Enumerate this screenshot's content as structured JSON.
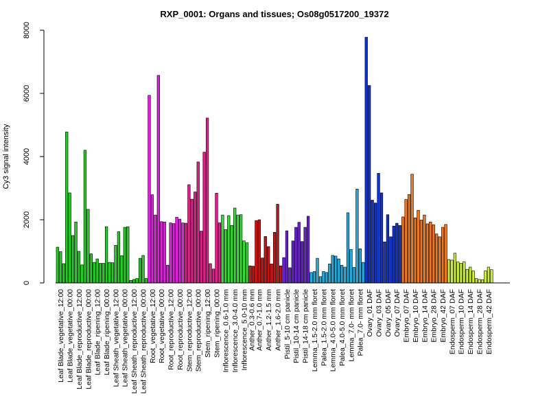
{
  "chart_data": {
    "type": "bar",
    "title": "RXP_0001: Organs and tissues; Os08g0517200_19372",
    "ylabel": "Cy3 signal intensity",
    "xlabel": "",
    "ylim": [
      0,
      8000
    ],
    "yticks": [
      0,
      2000,
      4000,
      6000,
      8000
    ],
    "grid": false,
    "groups": [
      {
        "label": "Leaf Blade_vegetative_12:00",
        "color": "#22cc22",
        "values": [
          1130,
          990,
          610
        ]
      },
      {
        "label": "Leaf Blade_vegetative_00:00",
        "color": "#22cc22",
        "values": [
          4780,
          2850,
          1500
        ]
      },
      {
        "label": "Leaf Blade_reproductive_12:00",
        "color": "#22cc22",
        "values": [
          1930,
          1000,
          570
        ]
      },
      {
        "label": "Leaf Blade_reproductive_00:00",
        "color": "#22cc22",
        "values": [
          4200,
          2330,
          920
        ]
      },
      {
        "label": "Leaf Blade_ripening_12:00",
        "color": "#22cc22",
        "values": [
          650,
          760,
          620
        ]
      },
      {
        "label": "Leaf Blade_ripening_00:00",
        "color": "#22cc22",
        "values": [
          620,
          1780,
          650
        ]
      },
      {
        "label": "Leaf Sheath_vegetative_12:00",
        "color": "#22cc22",
        "values": [
          640,
          1190,
          1620
        ]
      },
      {
        "label": "Leaf Sheath_vegetative_00:00",
        "color": "#22cc22",
        "values": [
          860,
          1760,
          1780
        ]
      },
      {
        "label": "Leaf Sheath_reproductive_12:00",
        "color": "#22cc22",
        "values": [
          80,
          110,
          140
        ]
      },
      {
        "label": "Leaf Sheath_reproductive_00:00",
        "color": "#22cc22",
        "values": [
          780,
          870,
          140
        ]
      },
      {
        "label": "Root_vegetative_12:00",
        "color": "#dd22dd",
        "values": [
          5940,
          2790,
          2150
        ]
      },
      {
        "label": "Root_vegetative_00:00",
        "color": "#dd22dd",
        "values": [
          6570,
          1940,
          1930
        ]
      },
      {
        "label": "Root_reproductive_12:00",
        "color": "#dd22dd",
        "values": [
          560,
          1900,
          1880
        ]
      },
      {
        "label": "Root_reproductive_00:00",
        "color": "#dd22dd",
        "values": [
          2080,
          2020,
          1900
        ]
      },
      {
        "label": "Stem_reproductive_12:00",
        "color": "#dd2288",
        "values": [
          1890,
          3110,
          2650
        ]
      },
      {
        "label": "Stem_reproductive_00:00",
        "color": "#dd2288",
        "values": [
          2880,
          3830,
          1640
        ]
      },
      {
        "label": "Stem_ripening_12:00",
        "color": "#dd2288",
        "values": [
          4140,
          5220,
          610
        ]
      },
      {
        "label": "Stem_ripening_00:00",
        "color": "#dd2288",
        "values": [
          440,
          2840,
          1900
        ]
      },
      {
        "label": "Inflorescence_0.6-1.0 mm",
        "color": "#33dd33",
        "values": [
          2150,
          1690,
          2130
        ]
      },
      {
        "label": "Inflorescence_3.0-4.0 mm",
        "color": "#33dd33",
        "values": [
          1820,
          2370,
          2150
        ]
      },
      {
        "label": "Inflorescence_5.0-10 mm",
        "color": "#33dd33",
        "values": [
          2160,
          1330,
          1270
        ]
      },
      {
        "label": "Anther_0.3-0.6 mm",
        "color": "#cc1111",
        "values": [
          540,
          530
        ]
      },
      {
        "label": "Anther_0.7-1.0 mm",
        "color": "#cc1111",
        "values": [
          1970,
          2000,
          790
        ]
      },
      {
        "label": "Anther_1.2-1.5 mm",
        "color": "#cc1111",
        "values": [
          1470,
          1150,
          600
        ]
      },
      {
        "label": "Anther_1.6-2.0 mm",
        "color": "#cc1111",
        "values": [
          1600,
          2490,
          540
        ]
      },
      {
        "label": "Pistil_5-10 cm panicle",
        "color": "#6622cc",
        "values": [
          800,
          1650,
          480
        ]
      },
      {
        "label": "Pistil_10-14 cm panicle",
        "color": "#6622cc",
        "values": [
          1330,
          1760,
          1920
        ]
      },
      {
        "label": "Pistil_14-18 cm panicle",
        "color": "#6622cc",
        "values": [
          1310,
          1760,
          2110
        ]
      },
      {
        "label": "Lemma_1.5-2.0 mm floret",
        "color": "#22aadd",
        "values": [
          330,
          360,
          780
        ]
      },
      {
        "label": "Palea_1.5-2.0 mm floret",
        "color": "#22aadd",
        "values": [
          200,
          360,
          330
        ]
      },
      {
        "label": "Lemma_4.0-5.0 mm floret",
        "color": "#22aadd",
        "values": [
          600,
          870,
          850
        ]
      },
      {
        "label": "Palea_4.0-5.0 mm floret",
        "color": "#22aadd",
        "values": [
          760,
          560,
          500
        ]
      },
      {
        "label": "Lemma_7.0- mm floret",
        "color": "#22aadd",
        "values": [
          2220,
          1060,
          490
        ]
      },
      {
        "label": "Palea_7.0- mm floret",
        "color": "#22aadd",
        "values": [
          2970,
          1080,
          650
        ]
      },
      {
        "label": "Ovary_01 DAF",
        "color": "#1133cc",
        "values": [
          7780,
          6250,
          2620
        ]
      },
      {
        "label": "Ovary_03 DAF",
        "color": "#1133cc",
        "values": [
          2530,
          3470,
          2850
        ]
      },
      {
        "label": "Ovary_05 DAF",
        "color": "#1133cc",
        "values": [
          1300,
          2160,
          1460
        ]
      },
      {
        "label": "Ovary_07 DAF",
        "color": "#1133cc",
        "values": [
          1800,
          1890,
          1820
        ]
      },
      {
        "label": "Embryo_07 DAF",
        "color": "#ee7722",
        "values": [
          2090,
          2640,
          2800
        ]
      },
      {
        "label": "Embryo_10 DAF",
        "color": "#ee7722",
        "values": [
          3440,
          2060,
          2300
        ]
      },
      {
        "label": "Embryo_14 DAF",
        "color": "#ee7722",
        "values": [
          1990,
          2150,
          1870
        ]
      },
      {
        "label": "Embryo_28 DAF",
        "color": "#ee7722",
        "values": [
          1930,
          1840,
          1550
        ]
      },
      {
        "label": "Embryo_42 DAF",
        "color": "#ee7722",
        "values": [
          1460,
          1760,
          1850
        ]
      },
      {
        "label": "Endosperm_07 DAF",
        "color": "#ccee33",
        "values": [
          740,
          720,
          940
        ]
      },
      {
        "label": "Endosperm_10 DAF",
        "color": "#ccee33",
        "values": [
          660,
          620,
          670
        ]
      },
      {
        "label": "Endosperm_14 DAF",
        "color": "#ccee33",
        "values": [
          430,
          500,
          380
        ]
      },
      {
        "label": "Endosperm_28 DAF",
        "color": "#ccee33",
        "values": [
          140,
          110,
          100
        ]
      },
      {
        "label": "Endosperm_42 DAF",
        "color": "#ccee33",
        "values": [
          380,
          500,
          420
        ]
      }
    ]
  }
}
